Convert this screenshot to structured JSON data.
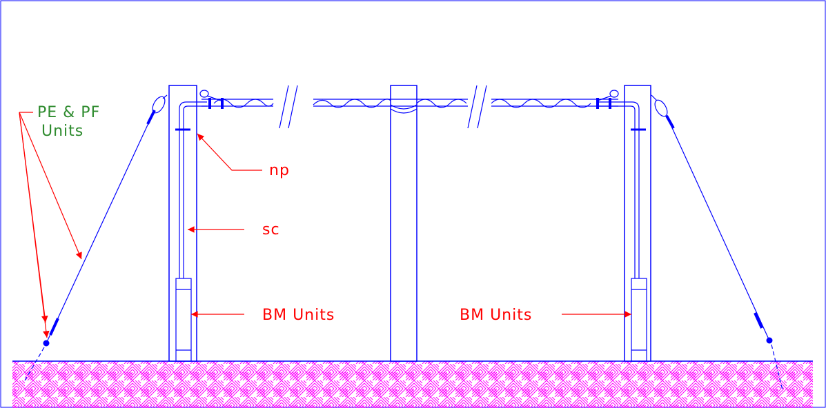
{
  "labels": {
    "guy_units_line1": "PE & PF",
    "guy_units_line2": "Units",
    "neutral_point": "np",
    "service_conductor": "sc",
    "bm_units_left": "BM Units",
    "bm_units_right": "BM Units"
  },
  "colors": {
    "structure": "#0000ff",
    "callout": "#ff0000",
    "guy_label": "#2e8b2e",
    "ground_hatch": "#ff00ff"
  }
}
